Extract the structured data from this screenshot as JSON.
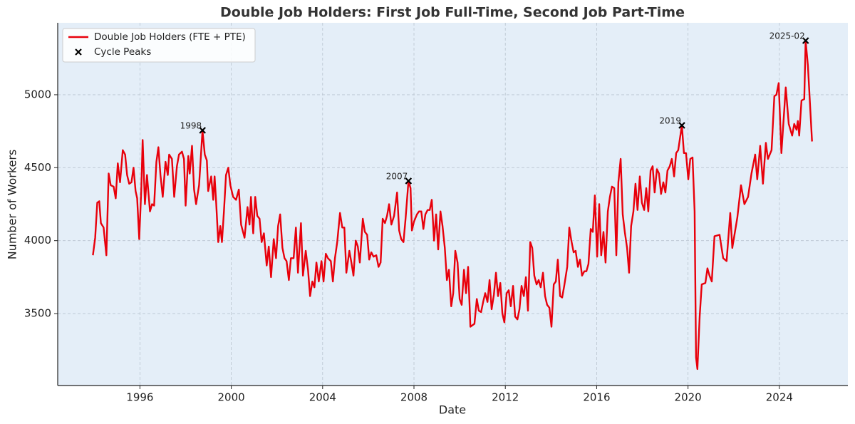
{
  "chart_data": {
    "type": "line",
    "title": "Double Job Holders: First Job Full-Time, Second Job Part-Time",
    "xlabel": "Date",
    "ylabel": "Number of Workers",
    "xlim": [
      1992.4,
      2027.0
    ],
    "ylim": [
      3007,
      5493
    ],
    "xticks": [
      1996,
      2000,
      2004,
      2008,
      2012,
      2016,
      2020,
      2024
    ],
    "yticks": [
      3500,
      4000,
      4500,
      5000
    ],
    "grid": true,
    "legend": "upper left",
    "background": "#e4eef8",
    "series": [
      {
        "name": "Double Job Holders (FTE + PTE)",
        "type": "line",
        "color": "#e8000b",
        "x": [
          1993.94,
          1994.04,
          1994.13,
          1994.22,
          1994.29,
          1994.41,
          1994.53,
          1994.63,
          1994.72,
          1994.85,
          1994.94,
          1995.03,
          1995.13,
          1995.25,
          1995.35,
          1995.44,
          1995.53,
          1995.63,
          1995.72,
          1995.81,
          1995.88,
          1995.97,
          1996.06,
          1996.12,
          1996.22,
          1996.31,
          1996.44,
          1996.53,
          1996.62,
          1996.72,
          1996.81,
          1996.9,
          1997.0,
          1997.12,
          1997.22,
          1997.28,
          1997.4,
          1997.5,
          1997.62,
          1997.71,
          1997.84,
          1997.93,
          1998.0,
          1998.12,
          1998.18,
          1998.28,
          1998.37,
          1998.46,
          1998.59,
          1998.74,
          1998.84,
          1998.93,
          1998.99,
          1999.12,
          1999.21,
          1999.27,
          1999.34,
          1999.43,
          1999.52,
          1999.59,
          1999.68,
          1999.77,
          1999.87,
          1999.96,
          2000.08,
          2000.21,
          2000.33,
          2000.43,
          2000.58,
          2000.71,
          2000.8,
          2000.86,
          2000.96,
          2001.05,
          2001.14,
          2001.24,
          2001.33,
          2001.43,
          2001.55,
          2001.64,
          2001.74,
          2001.86,
          2001.96,
          2002.05,
          2002.14,
          2002.24,
          2002.33,
          2002.42,
          2002.52,
          2002.61,
          2002.73,
          2002.83,
          2002.92,
          2003.05,
          2003.14,
          2003.26,
          2003.36,
          2003.45,
          2003.55,
          2003.64,
          2003.73,
          2003.83,
          2003.95,
          2004.04,
          2004.14,
          2004.23,
          2004.36,
          2004.45,
          2004.54,
          2004.64,
          2004.76,
          2004.86,
          2004.95,
          2005.04,
          2005.17,
          2005.26,
          2005.35,
          2005.45,
          2005.54,
          2005.63,
          2005.76,
          2005.85,
          2005.95,
          2006.04,
          2006.13,
          2006.23,
          2006.35,
          2006.45,
          2006.54,
          2006.63,
          2006.73,
          2006.82,
          2006.91,
          2007.01,
          2007.13,
          2007.26,
          2007.35,
          2007.44,
          2007.54,
          2007.63,
          2007.76,
          2007.85,
          2007.91,
          2008.0,
          2008.13,
          2008.22,
          2008.32,
          2008.41,
          2008.5,
          2008.6,
          2008.69,
          2008.78,
          2008.88,
          2008.97,
          2009.06,
          2009.16,
          2009.25,
          2009.35,
          2009.44,
          2009.53,
          2009.63,
          2009.72,
          2009.81,
          2009.91,
          2010.0,
          2010.09,
          2010.19,
          2010.28,
          2010.37,
          2010.47,
          2010.56,
          2010.65,
          2010.75,
          2010.84,
          2010.94,
          2011.03,
          2011.12,
          2011.22,
          2011.31,
          2011.4,
          2011.5,
          2011.59,
          2011.68,
          2011.78,
          2011.87,
          2011.96,
          2012.06,
          2012.15,
          2012.24,
          2012.34,
          2012.43,
          2012.53,
          2012.62,
          2012.71,
          2012.81,
          2012.9,
          2012.99,
          2013.09,
          2013.18,
          2013.27,
          2013.37,
          2013.46,
          2013.55,
          2013.65,
          2013.74,
          2013.83,
          2013.93,
          2014.02,
          2014.12,
          2014.21,
          2014.3,
          2014.4,
          2014.49,
          2014.58,
          2014.71,
          2014.8,
          2014.89,
          2014.99,
          2015.08,
          2015.18,
          2015.27,
          2015.36,
          2015.46,
          2015.55,
          2015.64,
          2015.74,
          2015.83,
          2015.92,
          2016.02,
          2016.11,
          2016.2,
          2016.3,
          2016.39,
          2016.49,
          2016.58,
          2016.67,
          2016.77,
          2016.86,
          2016.95,
          2017.05,
          2017.14,
          2017.23,
          2017.33,
          2017.42,
          2017.51,
          2017.61,
          2017.7,
          2017.79,
          2017.89,
          2017.98,
          2018.08,
          2018.17,
          2018.26,
          2018.36,
          2018.45,
          2018.54,
          2018.64,
          2018.73,
          2018.82,
          2018.92,
          2019.01,
          2019.1,
          2019.2,
          2019.29,
          2019.39,
          2019.48,
          2019.57,
          2019.73,
          2019.82,
          2019.91,
          2020.01,
          2020.1,
          2020.2,
          2020.29,
          2020.35,
          2020.41,
          2020.51,
          2020.6,
          2020.76,
          2020.85,
          2020.94,
          2021.04,
          2021.16,
          2021.38,
          2021.54,
          2021.69,
          2021.85,
          2021.94,
          2022.16,
          2022.32,
          2022.47,
          2022.63,
          2022.78,
          2022.94,
          2023.03,
          2023.16,
          2023.28,
          2023.41,
          2023.5,
          2023.66,
          2023.78,
          2023.87,
          2023.97,
          2024.09,
          2024.28,
          2024.41,
          2024.56,
          2024.65,
          2024.75,
          2024.81,
          2024.87,
          2024.97,
          2025.09,
          2025.15,
          2025.25,
          2025.43
        ],
        "values": [
          3900,
          4020,
          4260,
          4270,
          4120,
          4090,
          3900,
          4460,
          4380,
          4370,
          4290,
          4530,
          4400,
          4620,
          4590,
          4450,
          4390,
          4400,
          4500,
          4340,
          4290,
          4010,
          4350,
          4690,
          4250,
          4450,
          4200,
          4250,
          4240,
          4540,
          4640,
          4450,
          4300,
          4540,
          4450,
          4590,
          4560,
          4300,
          4510,
          4590,
          4610,
          4560,
          4240,
          4580,
          4460,
          4650,
          4350,
          4250,
          4380,
          4756,
          4590,
          4550,
          4340,
          4440,
          4280,
          4440,
          4260,
          3990,
          4100,
          3990,
          4200,
          4450,
          4500,
          4380,
          4300,
          4280,
          4350,
          4110,
          4020,
          4230,
          4110,
          4300,
          4050,
          4300,
          4170,
          4150,
          3990,
          4050,
          3830,
          3960,
          3750,
          4010,
          3880,
          4100,
          4180,
          3950,
          3880,
          3860,
          3730,
          3880,
          3880,
          4090,
          3780,
          4120,
          3760,
          3930,
          3800,
          3620,
          3720,
          3680,
          3850,
          3720,
          3860,
          3720,
          3910,
          3880,
          3860,
          3720,
          3880,
          3990,
          4190,
          4090,
          4090,
          3780,
          3930,
          3850,
          3760,
          4000,
          3960,
          3850,
          4150,
          4060,
          4040,
          3870,
          3920,
          3890,
          3900,
          3820,
          3850,
          4150,
          4120,
          4170,
          4250,
          4110,
          4170,
          4330,
          4070,
          4010,
          3990,
          4150,
          4409,
          4360,
          4070,
          4130,
          4180,
          4200,
          4200,
          4080,
          4180,
          4210,
          4210,
          4280,
          4000,
          4180,
          3940,
          4200,
          4100,
          3950,
          3730,
          3800,
          3550,
          3640,
          3930,
          3850,
          3600,
          3560,
          3800,
          3640,
          3820,
          3410,
          3420,
          3430,
          3600,
          3520,
          3510,
          3580,
          3640,
          3580,
          3730,
          3530,
          3630,
          3780,
          3620,
          3710,
          3500,
          3440,
          3640,
          3660,
          3550,
          3690,
          3480,
          3460,
          3530,
          3690,
          3620,
          3750,
          3520,
          3990,
          3950,
          3760,
          3700,
          3730,
          3680,
          3780,
          3620,
          3560,
          3540,
          3410,
          3700,
          3720,
          3870,
          3620,
          3610,
          3690,
          3820,
          4090,
          4000,
          3920,
          3930,
          3820,
          3870,
          3760,
          3790,
          3790,
          3840,
          4080,
          4060,
          4310,
          3890,
          4250,
          3900,
          4060,
          3850,
          4200,
          4300,
          4370,
          4360,
          3900,
          4400,
          4560,
          4180,
          4060,
          3950,
          3780,
          4100,
          4200,
          4390,
          4210,
          4440,
          4260,
          4210,
          4360,
          4200,
          4480,
          4510,
          4330,
          4490,
          4460,
          4320,
          4400,
          4330,
          4480,
          4510,
          4560,
          4440,
          4600,
          4620,
          4790,
          4600,
          4600,
          4420,
          4560,
          4570,
          4200,
          3200,
          3120,
          3480,
          3700,
          3710,
          3810,
          3760,
          3720,
          4030,
          4040,
          3880,
          3860,
          4190,
          3950,
          4160,
          4380,
          4250,
          4300,
          4460,
          4590,
          4420,
          4650,
          4390,
          4670,
          4560,
          4620,
          4990,
          5000,
          5080,
          4600,
          5050,
          4800,
          4720,
          4800,
          4760,
          4820,
          4720,
          4960,
          4970,
          5371,
          5200,
          4680
        ]
      },
      {
        "name": "Cycle Peaks",
        "type": "scatter",
        "marker": "x",
        "color": "#000000",
        "x": [
          1998.74,
          2007.76,
          2019.73,
          2025.15
        ],
        "values": [
          4756,
          4409,
          4790,
          5371
        ],
        "labels": [
          "1998",
          "2007",
          "2019",
          "2025-02"
        ]
      }
    ]
  }
}
